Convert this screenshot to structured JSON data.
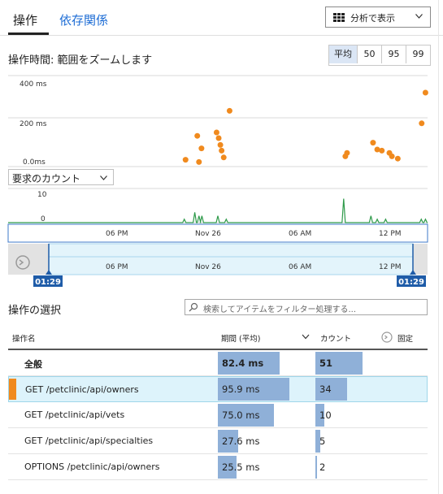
{
  "tabs": [
    {
      "label": "操作"
    },
    {
      "label": "依存関係"
    }
  ],
  "toolbar": {
    "analyze_label": "分析で表示"
  },
  "duration_chart": {
    "title": "操作時間: 範囲をズームします",
    "percentile_buttons": [
      "平均",
      "50",
      "95",
      "99"
    ],
    "selected_percentile": "平均"
  },
  "count_select": {
    "label": "要求のカウント"
  },
  "timeline": {
    "start_label": "01:29",
    "end_label": "01:29"
  },
  "operations": {
    "title": "操作の選択",
    "search_placeholder": "検索してアイテムをフィルター処理する...",
    "columns": {
      "name": "操作名",
      "duration": "期間 (平均)",
      "count": "カウント",
      "pin": "固定"
    },
    "rows": [
      {
        "name": "全般",
        "duration": "82.4 ms",
        "count": "51",
        "duration_value": 82.4,
        "count_value": 51,
        "bold": true,
        "selected": false
      },
      {
        "name": "GET /petclinic/api/owners",
        "duration": "95.9 ms",
        "count": "34",
        "duration_value": 95.9,
        "count_value": 34,
        "bold": false,
        "selected": true
      },
      {
        "name": "GET /petclinic/api/vets",
        "duration": "75.0 ms",
        "count": "10",
        "duration_value": 75.0,
        "count_value": 10,
        "bold": false,
        "selected": false
      },
      {
        "name": "GET /petclinic/api/specialties",
        "duration": "27.6 ms",
        "count": "5",
        "duration_value": 27.6,
        "count_value": 5,
        "bold": false,
        "selected": false
      },
      {
        "name": "OPTIONS /petclinic/api/owners",
        "duration": "25.5 ms",
        "count": "2",
        "duration_value": 25.5,
        "count_value": 2,
        "bold": false,
        "selected": false
      }
    ]
  },
  "chart_data": [
    {
      "type": "scatter",
      "title": "操作時間: 範囲をズームします",
      "ylabel": "",
      "ytick_labels": [
        "400 ms",
        "200 ms",
        "0.0ms"
      ],
      "ylim": [
        0,
        400
      ],
      "x_ticks": [
        "06 PM",
        "Nov 26",
        "06 AM",
        "12 PM"
      ],
      "color": "#f08a1e",
      "points": [
        {
          "t": 0.423,
          "y": 30
        },
        {
          "t": 0.451,
          "y": 135
        },
        {
          "t": 0.461,
          "y": 80
        },
        {
          "t": 0.455,
          "y": 20
        },
        {
          "t": 0.497,
          "y": 150
        },
        {
          "t": 0.502,
          "y": 125
        },
        {
          "t": 0.506,
          "y": 95
        },
        {
          "t": 0.509,
          "y": 70
        },
        {
          "t": 0.514,
          "y": 40
        },
        {
          "t": 0.528,
          "y": 245
        },
        {
          "t": 0.804,
          "y": 45
        },
        {
          "t": 0.808,
          "y": 60
        },
        {
          "t": 0.87,
          "y": 105
        },
        {
          "t": 0.88,
          "y": 75
        },
        {
          "t": 0.891,
          "y": 70
        },
        {
          "t": 0.909,
          "y": 60
        },
        {
          "t": 0.915,
          "y": 45
        },
        {
          "t": 0.929,
          "y": 35
        },
        {
          "t": 0.986,
          "y": 190
        },
        {
          "t": 0.995,
          "y": 325
        }
      ]
    },
    {
      "type": "line",
      "title": "要求のカウント",
      "ytick_labels": [
        "10",
        "0"
      ],
      "ylim": [
        0,
        10
      ],
      "x_ticks": [
        "06 PM",
        "Nov 26",
        "06 AM",
        "12 PM"
      ],
      "color": "#2e9a4a",
      "spikes": [
        {
          "t": 0.42,
          "y": 1
        },
        {
          "t": 0.445,
          "y": 3
        },
        {
          "t": 0.455,
          "y": 2
        },
        {
          "t": 0.462,
          "y": 2
        },
        {
          "t": 0.5,
          "y": 2
        },
        {
          "t": 0.52,
          "y": 1
        },
        {
          "t": 0.8,
          "y": 7
        },
        {
          "t": 0.865,
          "y": 2
        },
        {
          "t": 0.88,
          "y": 1
        },
        {
          "t": 0.9,
          "y": 1
        },
        {
          "t": 0.985,
          "y": 1
        },
        {
          "t": 0.995,
          "y": 1
        }
      ]
    }
  ]
}
